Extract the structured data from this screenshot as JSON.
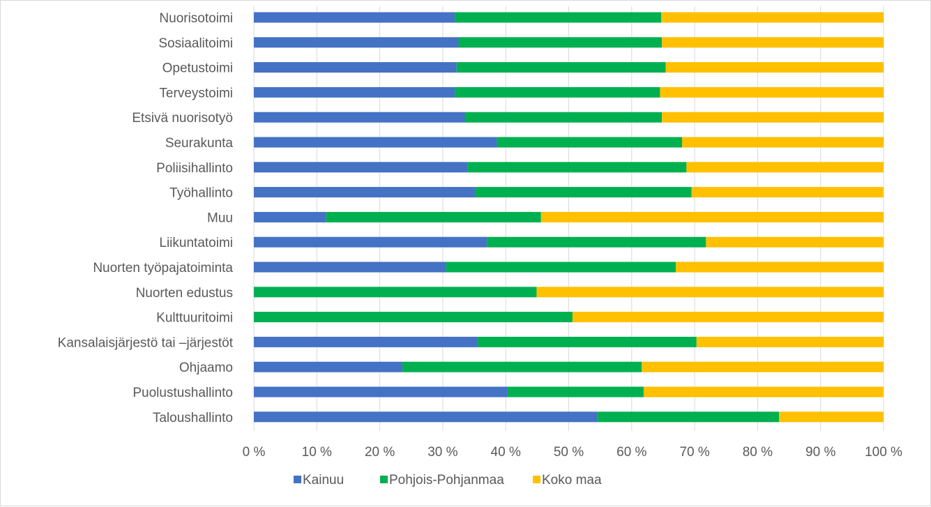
{
  "colors": {
    "Kainuu": "#4472c4",
    "Pohjois-Pohjanmaa": "#00b050",
    "Koko maa": "#ffc000",
    "grid": "#d9d9d9",
    "text": "#595959"
  },
  "chart_data": {
    "type": "bar",
    "orientation": "horizontal",
    "stacked": "percent",
    "categories": [
      "Nuorisotoimi",
      "Sosiaalitoimi",
      "Opetustoimi",
      "Terveystoimi",
      "Etsivä nuorisotyö",
      "Seurakunta",
      "Poliisihallinto",
      "Työhallinto",
      "Muu",
      "Liikuntatoimi",
      "Nuorten työpajatoiminta",
      "Nuorten edustus",
      "Kulttuuritoimi",
      "Kansalaisjärjestö tai –järjestöt",
      "Ohjaamo",
      "Puolustushallinto",
      "Taloushallinto"
    ],
    "series": [
      {
        "name": "Kainuu",
        "values": [
          31.9,
          32.5,
          32.2,
          31.9,
          33.5,
          38.6,
          33.9,
          35.1,
          11.5,
          37.0,
          30.5,
          0,
          0,
          35.5,
          23.6,
          40.3,
          54.5
        ]
      },
      {
        "name": "Pohjois-Pohjanmaa",
        "values": [
          32.8,
          32.3,
          33.2,
          32.6,
          31.3,
          29.4,
          34.8,
          34.4,
          34.1,
          34.8,
          36.5,
          44.9,
          50.6,
          34.8,
          38.0,
          21.6,
          28.9
        ]
      },
      {
        "name": "Koko maa",
        "values": [
          35.3,
          35.2,
          34.6,
          35.5,
          35.2,
          32.0,
          31.3,
          30.5,
          54.4,
          28.2,
          33.0,
          55.1,
          49.4,
          29.7,
          38.4,
          38.1,
          16.6
        ]
      }
    ],
    "x_ticks": [
      "0 %",
      "10 %",
      "20 %",
      "30 %",
      "40 %",
      "50 %",
      "60 %",
      "70 %",
      "80 %",
      "90 %",
      "100 %"
    ],
    "xlim": [
      0,
      100
    ],
    "grid": "vertical",
    "legend_position": "bottom"
  }
}
